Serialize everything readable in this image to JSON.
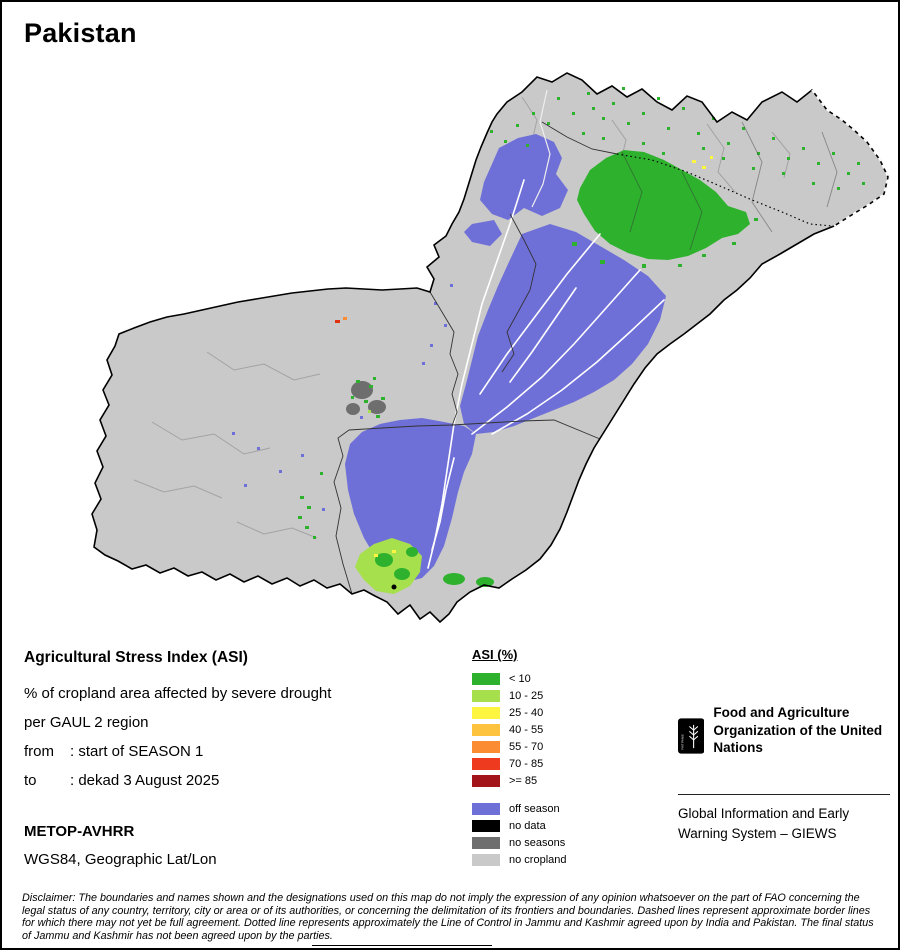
{
  "title": "Pakistan",
  "info": {
    "heading": "Agricultural Stress Index (ASI)",
    "description_line1": "% of cropland area affected by severe drought",
    "description_line2": "per GAUL 2 region",
    "from_label": "from",
    "from_value": ": start of SEASON 1",
    "to_label": "to",
    "to_value": ": dekad 3 August 2025",
    "sensor": "METOP-AVHRR",
    "projection": "WGS84, Geographic Lat/Lon"
  },
  "legend": {
    "title": "ASI (%)",
    "classes": [
      {
        "label": "< 10",
        "color": "#2eb22e"
      },
      {
        "label": "10 - 25",
        "color": "#a6e04c"
      },
      {
        "label": "25 - 40",
        "color": "#fdf53f"
      },
      {
        "label": "40 - 55",
        "color": "#fdc23e"
      },
      {
        "label": "55 - 70",
        "color": "#fb8c32"
      },
      {
        "label": "70 - 85",
        "color": "#ee3a1e"
      },
      {
        "label": ">= 85",
        "color": "#a3131a"
      }
    ],
    "extra_classes": [
      {
        "label": "off season",
        "color": "#6f6fd8"
      },
      {
        "label": "no data",
        "color": "#000000"
      },
      {
        "label": "no seasons",
        "color": "#6e6e6e"
      },
      {
        "label": "no cropland",
        "color": "#c9c9c9"
      }
    ]
  },
  "footer": {
    "logo_motto": "FIAT PANIS",
    "org_name": "Food and Agriculture Organization of the United Nations",
    "giews": "Global Information and Early Warning System – GIEWS"
  },
  "disclaimer": "Disclaimer: The boundaries and names shown and the designations used on this map do not imply the expression of any opinion whatsoever on the part of FAO concerning the legal status of any country, territory, city or area or of its authorities, or concerning the delimitation of its frontiers and boundaries. Dashed lines represent approximate border lines for which there may not yet be full agreement. Dotted line represents approximately the Line of Control in Jammu and Kashmir agreed upon by India and Pakistan. The final status of Jammu and Kashmir has not been agreed upon by the parties."
}
